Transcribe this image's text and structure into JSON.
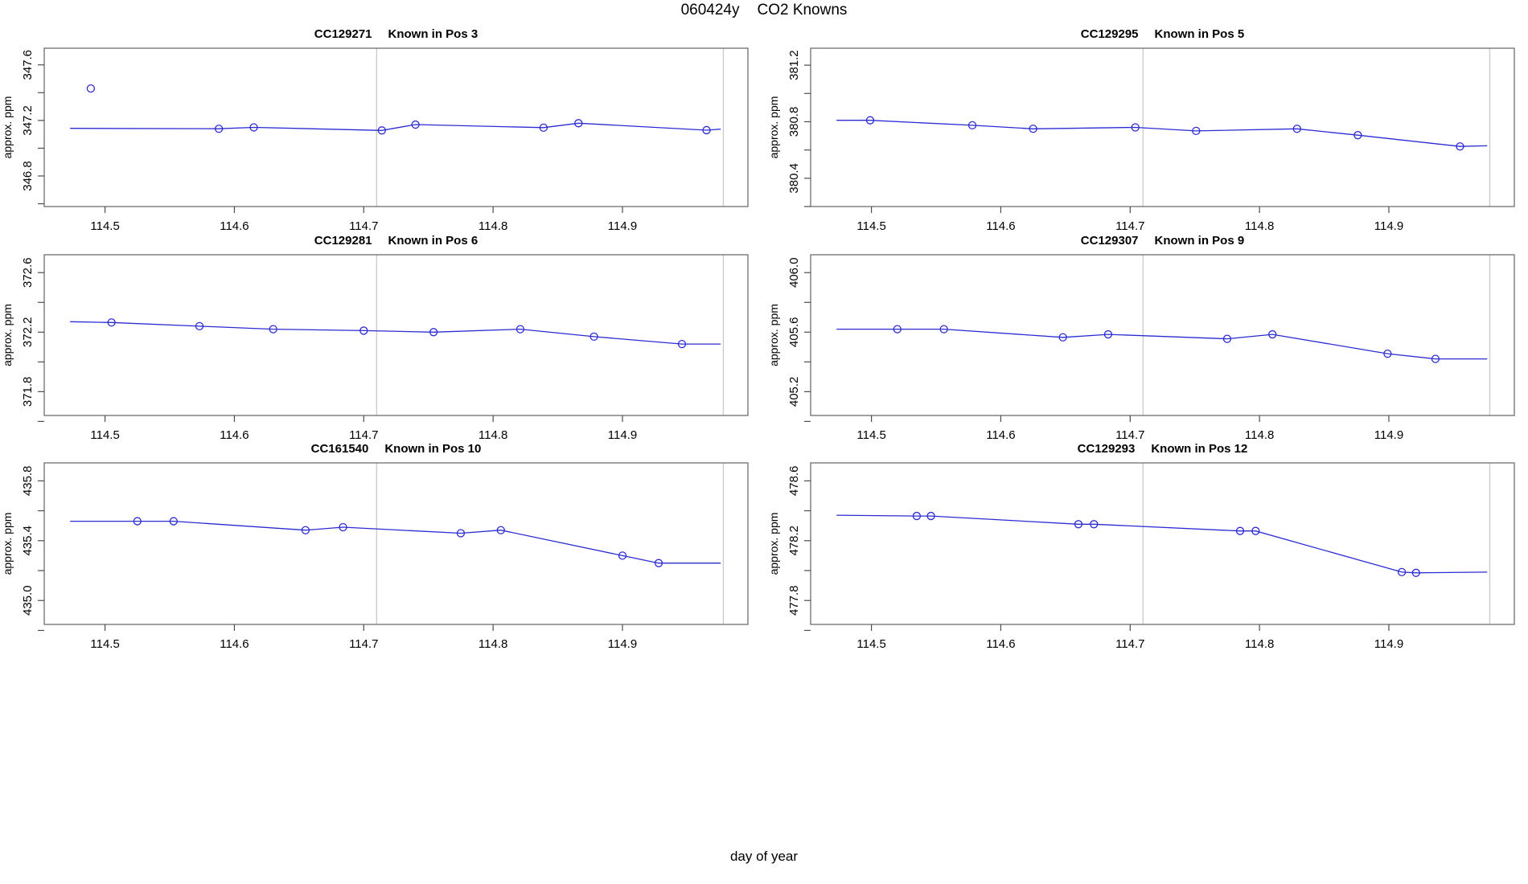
{
  "page_title": {
    "run_id": "060424y",
    "subject": "CO2 Knowns"
  },
  "footer": {
    "xlabel": "day of year"
  },
  "colors": {
    "series": "#2b2bd4",
    "vline": "#cccccc",
    "frame": "#6e6e6e",
    "tick": "#4d4d4d",
    "text": "#000000",
    "background": "#ffffff"
  },
  "axis": {
    "xlim": [
      114.453,
      114.997
    ],
    "xticks": [
      114.5,
      114.6,
      114.7,
      114.8,
      114.9
    ],
    "vlines": [
      114.71,
      114.978
    ]
  },
  "chart_data": [
    {
      "type": "line",
      "title_code": "CC129271",
      "title_pos": "Known in Pos 3",
      "ylabel": "approx. ppm",
      "ylim": [
        346.58,
        347.72
      ],
      "yticks_labeled": [
        347.6,
        347.2,
        346.8
      ],
      "yticks_minor": [
        347.4,
        347.0,
        346.6
      ],
      "line": [
        [
          114.473,
          347.143
        ],
        [
          114.588,
          347.14
        ],
        [
          114.615,
          347.15
        ],
        [
          114.714,
          347.128
        ],
        [
          114.74,
          347.17
        ],
        [
          114.839,
          347.148
        ],
        [
          114.866,
          347.18
        ],
        [
          114.965,
          347.13
        ],
        [
          114.976,
          347.138
        ]
      ],
      "points": [
        [
          114.588,
          347.14
        ],
        [
          114.615,
          347.15
        ],
        [
          114.714,
          347.128
        ],
        [
          114.74,
          347.17
        ],
        [
          114.839,
          347.148
        ],
        [
          114.866,
          347.18
        ],
        [
          114.965,
          347.13
        ]
      ],
      "isolated_points": [
        [
          114.489,
          347.43
        ]
      ]
    },
    {
      "type": "line",
      "title_code": "CC129295",
      "title_pos": "Known in Pos 5",
      "ylabel": "approx. ppm",
      "ylim": [
        380.2,
        381.32
      ],
      "yticks_labeled": [
        381.2,
        380.8,
        380.4
      ],
      "yticks_minor": [
        381.0,
        380.6,
        380.2
      ],
      "line": [
        [
          114.473,
          380.81
        ],
        [
          114.499,
          380.81
        ],
        [
          114.578,
          380.775
        ],
        [
          114.625,
          380.75
        ],
        [
          114.704,
          380.76
        ],
        [
          114.751,
          380.735
        ],
        [
          114.829,
          380.75
        ],
        [
          114.876,
          380.705
        ],
        [
          114.955,
          380.625
        ],
        [
          114.976,
          380.63
        ]
      ],
      "points": [
        [
          114.499,
          380.81
        ],
        [
          114.578,
          380.775
        ],
        [
          114.625,
          380.75
        ],
        [
          114.704,
          380.76
        ],
        [
          114.751,
          380.735
        ],
        [
          114.829,
          380.75
        ],
        [
          114.876,
          380.705
        ],
        [
          114.955,
          380.625
        ]
      ],
      "isolated_points": []
    },
    {
      "type": "line",
      "title_code": "CC129281",
      "title_pos": "Known in Pos 6",
      "ylabel": "approx. ppm",
      "ylim": [
        371.64,
        372.72
      ],
      "yticks_labeled": [
        372.6,
        372.2,
        371.8
      ],
      "yticks_minor": [
        372.4,
        372.0,
        371.6
      ],
      "line": [
        [
          114.473,
          372.27
        ],
        [
          114.505,
          372.265
        ],
        [
          114.573,
          372.24
        ],
        [
          114.63,
          372.22
        ],
        [
          114.7,
          372.21
        ],
        [
          114.754,
          372.2
        ],
        [
          114.821,
          372.22
        ],
        [
          114.878,
          372.17
        ],
        [
          114.946,
          372.12
        ],
        [
          114.976,
          372.12
        ]
      ],
      "points": [
        [
          114.505,
          372.265
        ],
        [
          114.573,
          372.24
        ],
        [
          114.63,
          372.22
        ],
        [
          114.7,
          372.21
        ],
        [
          114.754,
          372.2
        ],
        [
          114.821,
          372.22
        ],
        [
          114.878,
          372.17
        ],
        [
          114.946,
          372.12
        ]
      ],
      "isolated_points": []
    },
    {
      "type": "line",
      "title_code": "CC129307",
      "title_pos": "Known in Pos 9",
      "ylabel": "approx. ppm",
      "ylim": [
        405.04,
        406.12
      ],
      "yticks_labeled": [
        406.0,
        405.6,
        405.2
      ],
      "yticks_minor": [
        405.8,
        405.4,
        405.0
      ],
      "line": [
        [
          114.473,
          405.62
        ],
        [
          114.52,
          405.62
        ],
        [
          114.556,
          405.62
        ],
        [
          114.648,
          405.565
        ],
        [
          114.683,
          405.585
        ],
        [
          114.775,
          405.555
        ],
        [
          114.81,
          405.585
        ],
        [
          114.899,
          405.455
        ],
        [
          114.936,
          405.42
        ],
        [
          114.976,
          405.42
        ]
      ],
      "points": [
        [
          114.52,
          405.62
        ],
        [
          114.556,
          405.62
        ],
        [
          114.648,
          405.565
        ],
        [
          114.683,
          405.585
        ],
        [
          114.775,
          405.555
        ],
        [
          114.81,
          405.585
        ],
        [
          114.899,
          405.455
        ],
        [
          114.936,
          405.42
        ]
      ],
      "isolated_points": []
    },
    {
      "type": "line",
      "title_code": "CC161540",
      "title_pos": "Known in Pos 10",
      "ylabel": "approx. ppm",
      "ylim": [
        434.84,
        435.92
      ],
      "yticks_labeled": [
        435.8,
        435.4,
        435.0
      ],
      "yticks_minor": [
        435.6,
        435.2,
        434.8
      ],
      "line": [
        [
          114.473,
          435.53
        ],
        [
          114.525,
          435.53
        ],
        [
          114.553,
          435.53
        ],
        [
          114.655,
          435.47
        ],
        [
          114.684,
          435.49
        ],
        [
          114.775,
          435.45
        ],
        [
          114.806,
          435.47
        ],
        [
          114.9,
          435.3
        ],
        [
          114.928,
          435.25
        ],
        [
          114.976,
          435.25
        ]
      ],
      "points": [
        [
          114.525,
          435.53
        ],
        [
          114.553,
          435.53
        ],
        [
          114.655,
          435.47
        ],
        [
          114.684,
          435.49
        ],
        [
          114.775,
          435.45
        ],
        [
          114.806,
          435.47
        ],
        [
          114.9,
          435.3
        ],
        [
          114.928,
          435.25
        ]
      ],
      "isolated_points": []
    },
    {
      "type": "line",
      "title_code": "CC129293",
      "title_pos": "Known in Pos 12",
      "ylabel": "approx. ppm",
      "ylim": [
        477.64,
        478.72
      ],
      "yticks_labeled": [
        478.6,
        478.2,
        477.8
      ],
      "yticks_minor": [
        478.4,
        478.0,
        477.6
      ],
      "line": [
        [
          114.473,
          478.37
        ],
        [
          114.535,
          478.365
        ],
        [
          114.546,
          478.365
        ],
        [
          114.66,
          478.31
        ],
        [
          114.672,
          478.31
        ],
        [
          114.785,
          478.265
        ],
        [
          114.797,
          478.265
        ],
        [
          114.91,
          477.99
        ],
        [
          114.921,
          477.985
        ],
        [
          114.976,
          477.99
        ]
      ],
      "points": [
        [
          114.535,
          478.365
        ],
        [
          114.546,
          478.365
        ],
        [
          114.66,
          478.31
        ],
        [
          114.672,
          478.31
        ],
        [
          114.785,
          478.265
        ],
        [
          114.797,
          478.265
        ],
        [
          114.91,
          477.99
        ],
        [
          114.921,
          477.985
        ]
      ],
      "isolated_points": []
    }
  ]
}
